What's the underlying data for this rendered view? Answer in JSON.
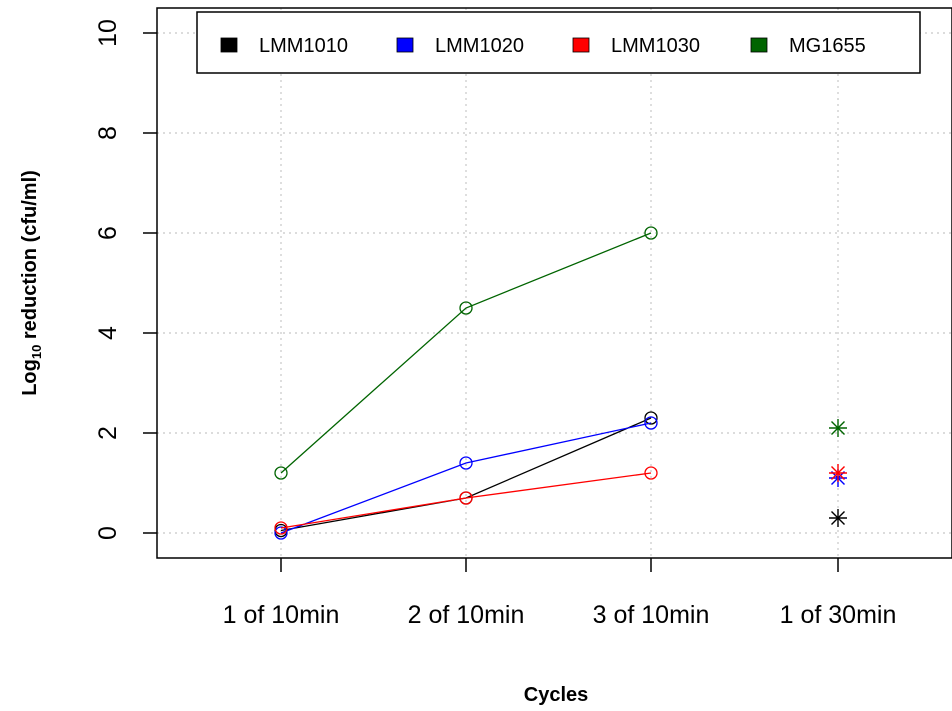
{
  "chart_data": {
    "type": "line",
    "categories": [
      "1 of 10min",
      "2 of 10min",
      "3 of 10min",
      "1 of 30min"
    ],
    "xlabel": "Cycles",
    "ylabel_main": "Log",
    "ylabel_sub": "10",
    "ylabel_rest": " reduction (cfu/ml)",
    "ylim": [
      -0.5,
      10.5
    ],
    "yticks": [
      "0",
      "2",
      "4",
      "6",
      "8",
      "10"
    ],
    "ytick_values": [
      0,
      2,
      4,
      6,
      8,
      10
    ],
    "grid": true,
    "legend_position": "top",
    "series": [
      {
        "name": "LMM1010",
        "color": "#000000",
        "line_values": [
          0.05,
          0.7,
          2.3
        ],
        "star_value": 0.3
      },
      {
        "name": "LMM1020",
        "color": "#0000ff",
        "line_values": [
          0.0,
          1.4,
          2.2
        ],
        "star_value": 1.1
      },
      {
        "name": "LMM1030",
        "color": "#ff0000",
        "line_values": [
          0.1,
          0.7,
          1.2
        ],
        "star_value": 1.2
      },
      {
        "name": "MG1655",
        "color": "#006400",
        "line_values": [
          1.2,
          4.5,
          6.0
        ],
        "star_value": 2.1
      }
    ]
  }
}
